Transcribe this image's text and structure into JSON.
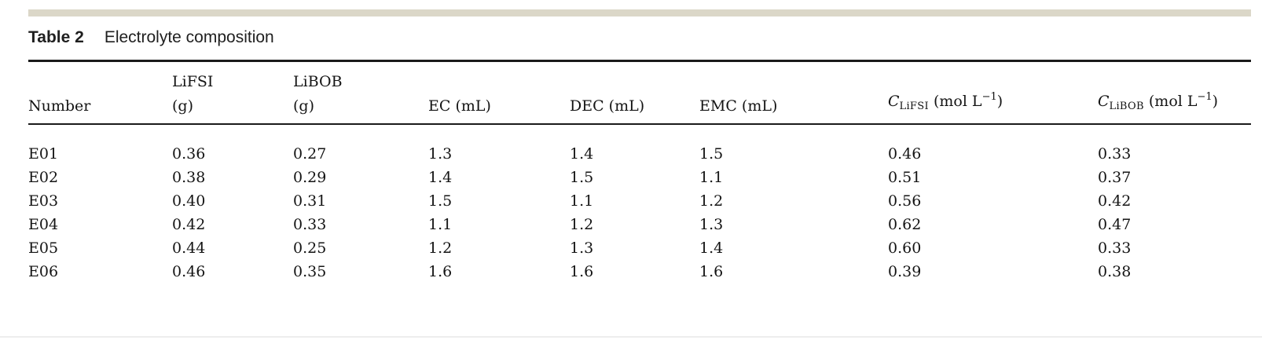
{
  "colors": {
    "background": "#ffffff",
    "accent_bar": "#dbd7c8",
    "rule": "#1a1a1a",
    "text": "#141414",
    "bottom_divider": "#ededed"
  },
  "caption": {
    "label": "Table 2",
    "title": "Electrolyte composition"
  },
  "table": {
    "columns": [
      {
        "type": "text",
        "lines": [
          "Number"
        ]
      },
      {
        "type": "text",
        "lines": [
          "LiFSI",
          "(g)"
        ]
      },
      {
        "type": "text",
        "lines": [
          "LiBOB",
          "(g)"
        ]
      },
      {
        "type": "text",
        "lines": [
          "EC (mL)"
        ]
      },
      {
        "type": "text",
        "lines": [
          "DEC (mL)"
        ]
      },
      {
        "type": "text",
        "lines": [
          "EMC (mL)"
        ]
      },
      {
        "type": "formula",
        "variable": "C",
        "subscript": "LiFSI",
        "unit_open": " (mol L",
        "superscript": "−1",
        "unit_close": ")"
      },
      {
        "type": "formula",
        "variable": "C",
        "subscript": "LiBOB",
        "unit_open": " (mol L",
        "superscript": "−1",
        "unit_close": ")"
      }
    ],
    "rows": [
      [
        "E01",
        "0.36",
        "0.27",
        "1.3",
        "1.4",
        "1.5",
        "0.46",
        "0.33"
      ],
      [
        "E02",
        "0.38",
        "0.29",
        "1.4",
        "1.5",
        "1.1",
        "0.51",
        "0.37"
      ],
      [
        "E03",
        "0.40",
        "0.31",
        "1.5",
        "1.1",
        "1.2",
        "0.56",
        "0.42"
      ],
      [
        "E04",
        "0.42",
        "0.33",
        "1.1",
        "1.2",
        "1.3",
        "0.62",
        "0.47"
      ],
      [
        "E05",
        "0.44",
        "0.25",
        "1.2",
        "1.3",
        "1.4",
        "0.60",
        "0.33"
      ],
      [
        "E06",
        "0.46",
        "0.35",
        "1.6",
        "1.6",
        "1.6",
        "0.39",
        "0.38"
      ]
    ]
  }
}
